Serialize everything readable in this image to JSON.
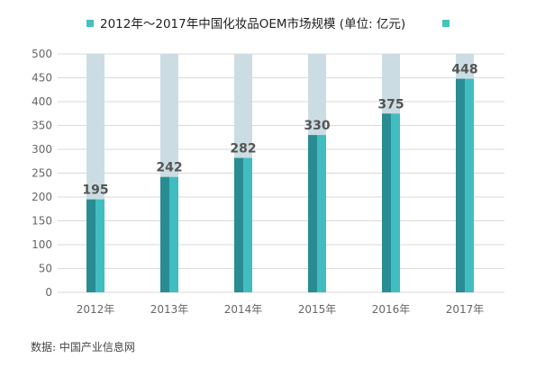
{
  "chart_data": {
    "type": "bar",
    "title": "2012年～2017年中国化妆品OEM市场规模 (单位: 亿元)",
    "categories": [
      "2012年",
      "2013年",
      "2014年",
      "2015年",
      "2016年",
      "2017年"
    ],
    "values": [
      195,
      242,
      282,
      330,
      375,
      448
    ],
    "data_labels": [
      "195",
      "242",
      "282",
      "330",
      "375",
      "448"
    ],
    "ylim": [
      0,
      500
    ],
    "yticks": [
      0,
      50,
      100,
      150,
      200,
      250,
      300,
      350,
      400,
      450,
      500
    ],
    "xlabel": "",
    "ylabel": "",
    "grid": true,
    "legend_position": "top"
  },
  "source": "数据: 中国产业信息网",
  "colors": {
    "bar_dark": "#2a8c93",
    "bar_light": "#41bdc1",
    "bar_background": "#cbdde2",
    "legend_marker": "#45c2ba",
    "grid": "#d9d9d9",
    "axis_text": "#666666",
    "label_text": "#555555"
  }
}
